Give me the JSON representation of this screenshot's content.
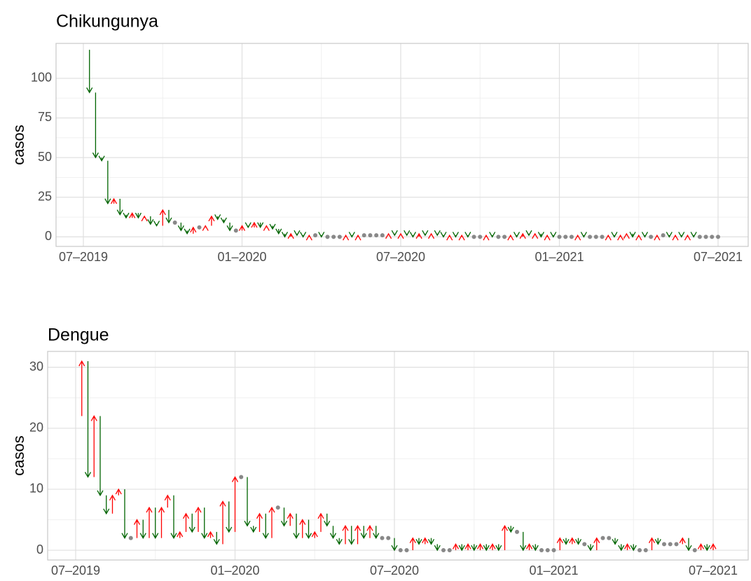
{
  "chart_data": [
    {
      "type": "arrow",
      "title": "Chikungunya",
      "y_label": "casos",
      "categories": [
        "07–2019",
        null,
        null,
        null,
        null,
        null,
        null,
        null,
        null,
        null,
        null,
        null,
        null,
        null,
        null,
        null,
        null,
        null,
        null,
        null,
        null,
        null,
        null,
        null,
        null,
        null,
        "01–2020",
        null,
        null,
        null,
        null,
        null,
        null,
        null,
        null,
        null,
        null,
        null,
        null,
        null,
        null,
        null,
        null,
        null,
        null,
        null,
        null,
        null,
        null,
        null,
        null,
        null,
        "07–2020",
        null,
        null,
        null,
        null,
        null,
        null,
        null,
        null,
        null,
        null,
        null,
        null,
        null,
        null,
        null,
        null,
        null,
        null,
        null,
        null,
        null,
        null,
        null,
        null,
        null,
        "01–2021",
        null,
        null,
        null,
        null,
        null,
        null,
        null,
        null,
        null,
        null,
        null,
        null,
        null,
        null,
        null,
        null,
        null,
        null,
        null,
        null,
        null,
        null,
        null,
        null,
        null,
        "07–2021"
      ],
      "values": [
        118,
        91,
        50,
        48,
        21,
        24,
        14,
        12,
        15,
        12,
        13,
        8,
        7,
        17,
        9,
        9,
        4,
        2,
        6,
        6,
        7,
        13,
        11,
        9,
        4,
        4,
        7,
        6,
        9,
        6,
        7,
        5,
        2,
        0,
        2,
        1,
        0,
        1,
        1,
        0,
        0,
        0,
        0,
        1,
        0,
        1,
        1,
        1,
        1,
        1,
        2,
        1,
        2,
        1,
        0,
        2,
        1,
        2,
        1,
        0,
        1,
        0,
        1,
        0,
        0,
        0,
        1,
        0,
        0,
        0,
        1,
        0,
        2,
        1,
        2,
        0,
        1,
        0,
        0,
        0,
        0,
        1,
        0,
        0,
        0,
        0,
        1,
        0,
        1,
        2,
        0,
        1,
        0,
        0,
        1,
        1,
        0,
        1,
        0,
        1,
        0,
        0,
        0,
        0,
        0
      ],
      "ylim": [
        -6,
        122
      ],
      "yticks": [
        0,
        25,
        50,
        75,
        100
      ],
      "up_color": "#ff0000",
      "down_color": "#006400",
      "same_color": "#888888",
      "grid": true
    },
    {
      "type": "arrow",
      "title": "Dengue",
      "y_label": "casos",
      "categories": [
        "07–2019",
        null,
        null,
        null,
        null,
        null,
        null,
        null,
        null,
        null,
        null,
        null,
        null,
        null,
        null,
        null,
        null,
        null,
        null,
        null,
        null,
        null,
        null,
        null,
        null,
        null,
        "01–2020",
        null,
        null,
        null,
        null,
        null,
        null,
        null,
        null,
        null,
        null,
        null,
        null,
        null,
        null,
        null,
        null,
        null,
        null,
        null,
        null,
        null,
        null,
        null,
        null,
        null,
        "07–2020",
        null,
        null,
        null,
        null,
        null,
        null,
        null,
        null,
        null,
        null,
        null,
        null,
        null,
        null,
        null,
        null,
        null,
        null,
        null,
        null,
        null,
        null,
        null,
        null,
        null,
        "01–2021",
        null,
        null,
        null,
        null,
        null,
        null,
        null,
        null,
        null,
        null,
        null,
        null,
        null,
        null,
        null,
        null,
        null,
        null,
        null,
        null,
        null,
        null,
        null,
        null,
        null,
        "07–2021"
      ],
      "values": [
        22,
        31,
        12,
        22,
        9,
        6,
        9,
        10,
        2,
        2,
        5,
        2,
        7,
        2,
        7,
        9,
        2,
        3,
        6,
        3,
        7,
        2,
        3,
        1,
        8,
        3,
        12,
        12,
        4,
        3,
        6,
        2,
        7,
        7,
        4,
        6,
        2,
        5,
        2,
        3,
        6,
        4,
        2,
        1,
        4,
        1,
        4,
        2,
        4,
        2,
        2,
        2,
        0,
        0,
        0,
        2,
        1,
        2,
        1,
        0,
        0,
        0,
        1,
        0,
        1,
        0,
        1,
        0,
        1,
        0,
        4,
        3,
        3,
        0,
        1,
        0,
        0,
        0,
        0,
        2,
        1,
        2,
        1,
        1,
        0,
        2,
        2,
        2,
        1,
        0,
        1,
        0,
        0,
        0,
        2,
        1,
        1,
        1,
        1,
        2,
        0,
        0,
        1,
        0,
        1
      ],
      "ylim": [
        -1.6,
        32.6
      ],
      "yticks": [
        0,
        10,
        20,
        30
      ],
      "up_color": "#ff0000",
      "down_color": "#006400",
      "same_color": "#888888",
      "grid": true
    }
  ]
}
